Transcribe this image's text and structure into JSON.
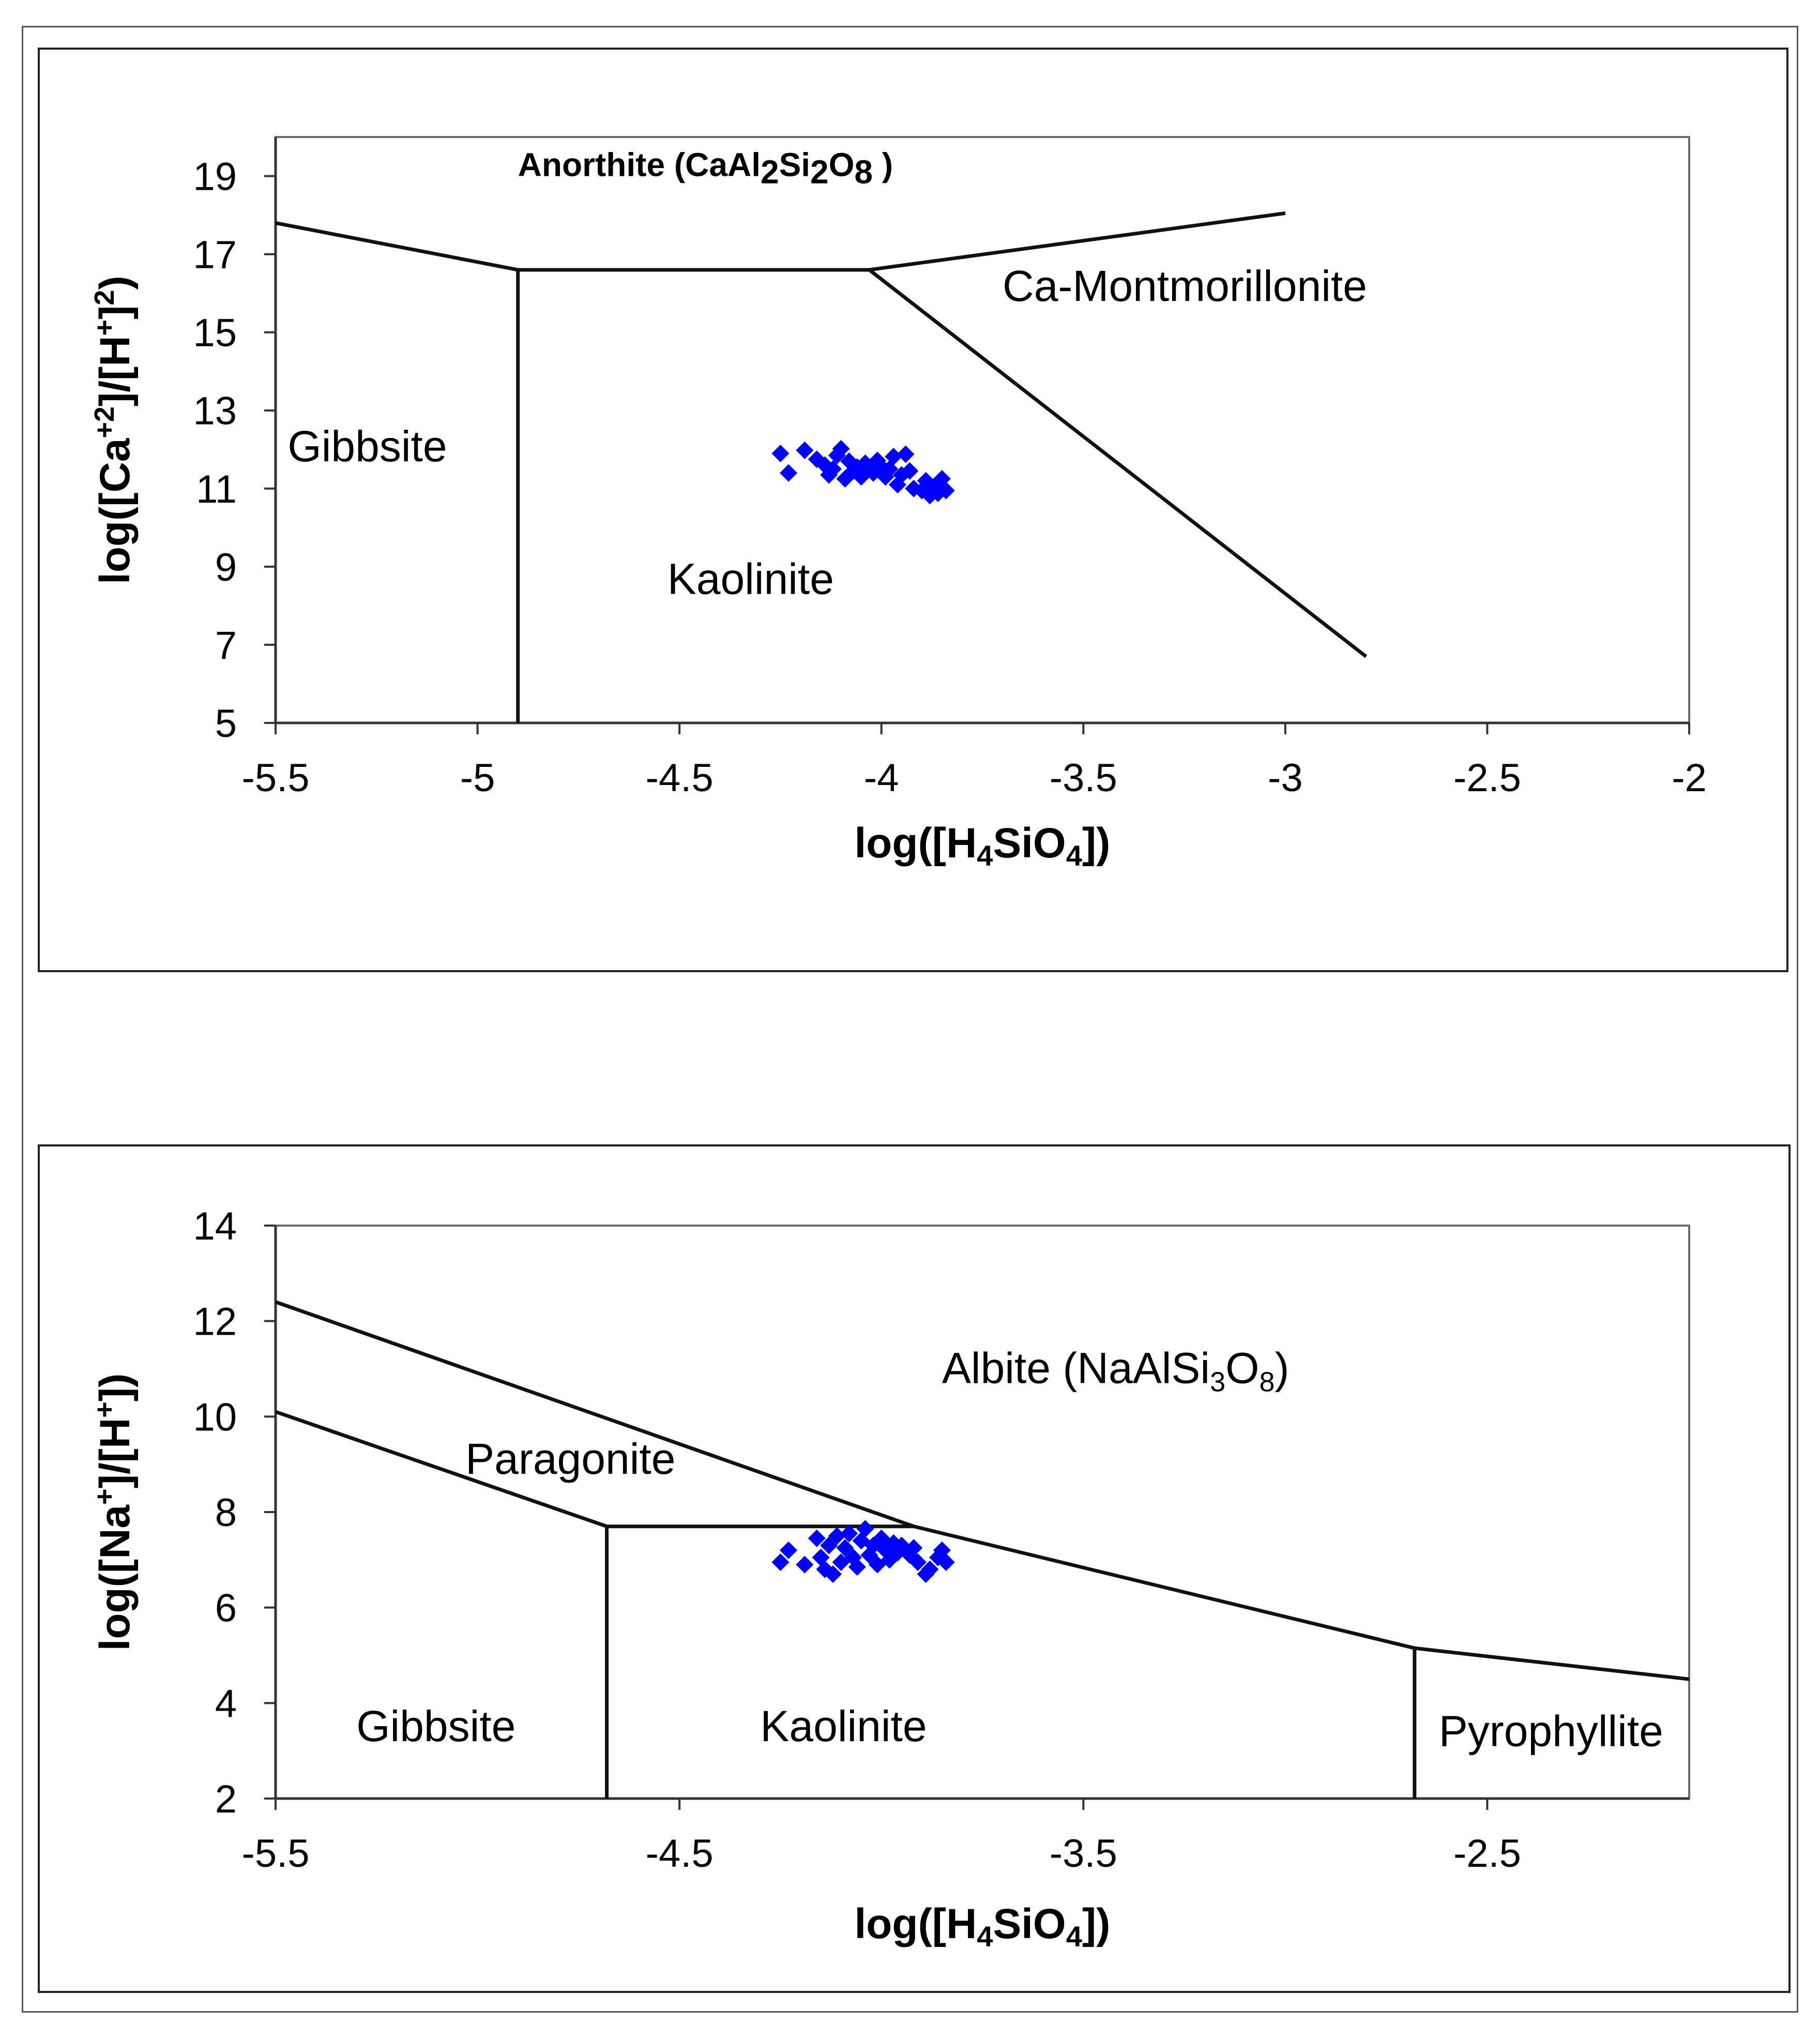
{
  "chart_data": [
    {
      "type": "scatter",
      "title": "",
      "xlabel": "log([H4SiO4])",
      "xlabel_parts": {
        "pre": "log([H",
        "sub1": "4",
        "mid": "SiO",
        "sub2": "4",
        "post": "])"
      },
      "ylabel": "log([Ca+2]/[H+]2)",
      "ylabel_parts": {
        "pre": "log([Ca",
        "sup1": "+2",
        "mid": "]/[H",
        "sup2": "+",
        "mid2": "]",
        "sup3": "2",
        "post": ")"
      },
      "xlim": [
        -5.5,
        -2
      ],
      "ylim": [
        5,
        20
      ],
      "x_ticks": [
        -5.5,
        -5,
        -4.5,
        -4,
        -3.5,
        -3,
        -2.5,
        -2
      ],
      "x_tick_labels": [
        "-5.5",
        "-5",
        "-4.5",
        "-4",
        "-3.5",
        "-3",
        "-2.5",
        "-2"
      ],
      "y_ticks": [
        5,
        7,
        9,
        11,
        13,
        15,
        17,
        19
      ],
      "y_tick_labels": [
        "5",
        "7",
        "9",
        "11",
        "13",
        "15",
        "17",
        "19"
      ],
      "boundaries": [
        {
          "name": "gibbsite-anorthite",
          "x": [
            -5.5,
            -4.9
          ],
          "y": [
            17.8,
            16.6
          ]
        },
        {
          "name": "gibbsite-kaolinite",
          "x": [
            -4.9,
            -4.9
          ],
          "y": [
            16.6,
            5
          ]
        },
        {
          "name": "kaolinite-anorthite",
          "x": [
            -4.9,
            -4.03
          ],
          "y": [
            16.6,
            16.6
          ]
        },
        {
          "name": "anorthite-ca-montmorillonite",
          "x": [
            -4.03,
            -3.0
          ],
          "y": [
            16.6,
            18.05
          ]
        },
        {
          "name": "kaolinite-ca-montmorillonite",
          "x": [
            -4.03,
            -2.8
          ],
          "y": [
            16.6,
            6.7
          ]
        }
      ],
      "regions": [
        {
          "name": "region-anorthite",
          "label_pre": "Anorthite (CaAl",
          "sub1": "2",
          "mid1": "Si",
          "sub2": "2",
          "mid2": "O",
          "sub3": "8",
          "post": " )",
          "x": -4.9,
          "y": 19.0
        },
        {
          "name": "region-ca-montmorillonite",
          "label": "Ca-Montmorillonite",
          "x": -3.7,
          "y": 15.8
        },
        {
          "name": "region-gibbsite",
          "label": "Gibbsite",
          "x": -5.47,
          "y": 11.7
        },
        {
          "name": "region-kaolinite",
          "label": "Kaolinite",
          "x": -4.53,
          "y": 8.3
        }
      ],
      "series": [
        {
          "name": "samples",
          "color": "#0000ff",
          "marker": "diamond",
          "points": [
            [
              -4.25,
              11.9
            ],
            [
              -4.23,
              11.4
            ],
            [
              -4.19,
              11.98
            ],
            [
              -4.16,
              11.75
            ],
            [
              -4.14,
              11.6
            ],
            [
              -4.13,
              11.35
            ],
            [
              -4.12,
              11.5
            ],
            [
              -4.11,
              11.85
            ],
            [
              -4.1,
              12.02
            ],
            [
              -4.09,
              11.25
            ],
            [
              -4.08,
              11.7
            ],
            [
              -4.07,
              11.45
            ],
            [
              -4.06,
              11.55
            ],
            [
              -4.05,
              11.3
            ],
            [
              -4.04,
              11.65
            ],
            [
              -4.03,
              11.5
            ],
            [
              -4.02,
              11.4
            ],
            [
              -4.01,
              11.72
            ],
            [
              -4.0,
              11.55
            ],
            [
              -3.99,
              11.3
            ],
            [
              -3.98,
              11.5
            ],
            [
              -3.97,
              11.82
            ],
            [
              -3.96,
              11.1
            ],
            [
              -3.95,
              11.35
            ],
            [
              -3.94,
              11.88
            ],
            [
              -3.93,
              11.45
            ],
            [
              -3.92,
              11.0
            ],
            [
              -3.9,
              10.95
            ],
            [
              -3.89,
              11.2
            ],
            [
              -3.88,
              10.82
            ],
            [
              -3.87,
              11.05
            ],
            [
              -3.86,
              10.88
            ],
            [
              -3.85,
              11.25
            ],
            [
              -3.84,
              10.95
            ]
          ]
        }
      ]
    },
    {
      "type": "scatter",
      "title": "",
      "xlabel": "log([H4SiO4])",
      "xlabel_parts": {
        "pre": "log([H",
        "sub1": "4",
        "mid": "SiO",
        "sub2": "4",
        "post": "])"
      },
      "ylabel": "log([Na+]/[H+])",
      "ylabel_parts": {
        "pre": "log([Na",
        "sup1": "+",
        "mid": "]/[H",
        "sup2": "+",
        "post": "])"
      },
      "xlim": [
        -5.5,
        -2
      ],
      "ylim": [
        2,
        14
      ],
      "x_ticks": [
        -5.5,
        -4.5,
        -3.5,
        -2.5
      ],
      "x_tick_labels": [
        "-5.5",
        "-4.5",
        "-3.5",
        "-2.5"
      ],
      "y_ticks": [
        2,
        4,
        6,
        8,
        10,
        12,
        14
      ],
      "y_tick_labels": [
        "2",
        "4",
        "6",
        "8",
        "10",
        "12",
        "14"
      ],
      "boundaries": [
        {
          "name": "albite-upper-boundary",
          "x": [
            -5.5,
            -3.92,
            -2.68,
            -2.0
          ],
          "y": [
            12.4,
            7.7,
            5.15,
            4.5
          ]
        },
        {
          "name": "paragonite-lower-boundary",
          "x": [
            -5.5,
            -4.68
          ],
          "y": [
            10.1,
            7.7
          ]
        },
        {
          "name": "kaolinite-paragonite",
          "x": [
            -4.68,
            -3.92
          ],
          "y": [
            7.7,
            7.7
          ]
        },
        {
          "name": "gibbsite-kaolinite",
          "x": [
            -4.68,
            -4.68
          ],
          "y": [
            7.7,
            2
          ]
        },
        {
          "name": "kaolinite-pyrophyllite",
          "x": [
            -2.68,
            -2.68
          ],
          "y": [
            5.15,
            2
          ]
        }
      ],
      "regions": [
        {
          "name": "region-albite",
          "label_pre": "Albite (NaAlSi",
          "sub1": "3",
          "mid1": "O",
          "sub2": "8",
          "post": ")",
          "x": -3.85,
          "y": 10.7
        },
        {
          "name": "region-paragonite",
          "label": "Paragonite",
          "x": -5.03,
          "y": 8.8
        },
        {
          "name": "region-gibbsite",
          "label": "Gibbsite",
          "x": -5.3,
          "y": 3.2
        },
        {
          "name": "region-kaolinite",
          "label": "Kaolinite",
          "x": -4.3,
          "y": 3.2
        },
        {
          "name": "region-pyrophyllite",
          "label": "Pyrophyllite",
          "x": -2.62,
          "y": 3.1
        }
      ],
      "series": [
        {
          "name": "samples",
          "color": "#0000ff",
          "marker": "diamond",
          "points": [
            [
              -4.25,
              6.95
            ],
            [
              -4.23,
              7.2
            ],
            [
              -4.19,
              6.9
            ],
            [
              -4.16,
              7.45
            ],
            [
              -4.15,
              7.05
            ],
            [
              -4.14,
              6.8
            ],
            [
              -4.13,
              7.3
            ],
            [
              -4.12,
              6.7
            ],
            [
              -4.11,
              7.5
            ],
            [
              -4.1,
              6.95
            ],
            [
              -4.09,
              7.25
            ],
            [
              -4.08,
              7.55
            ],
            [
              -4.07,
              7.05
            ],
            [
              -4.06,
              6.85
            ],
            [
              -4.05,
              7.4
            ],
            [
              -4.04,
              7.65
            ],
            [
              -4.03,
              7.1
            ],
            [
              -4.02,
              7.3
            ],
            [
              -4.01,
              6.9
            ],
            [
              -4.0,
              7.45
            ],
            [
              -3.99,
              7.2
            ],
            [
              -3.98,
              7.0
            ],
            [
              -3.97,
              7.35
            ],
            [
              -3.96,
              7.15
            ],
            [
              -3.95,
              7.3
            ],
            [
              -3.93,
              7.1
            ],
            [
              -3.92,
              7.25
            ],
            [
              -3.91,
              6.95
            ],
            [
              -3.89,
              6.7
            ],
            [
              -3.88,
              6.8
            ],
            [
              -3.86,
              7.05
            ],
            [
              -3.85,
              7.2
            ],
            [
              -3.84,
              6.95
            ]
          ]
        }
      ]
    }
  ]
}
